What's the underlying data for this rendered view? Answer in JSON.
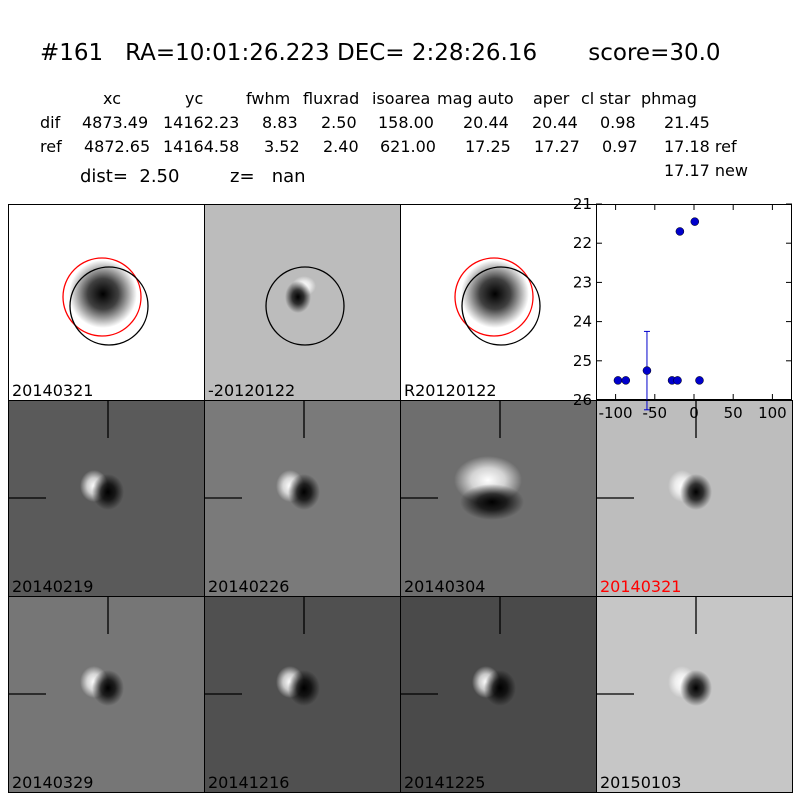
{
  "header": {
    "title": "#161   RA=10:01:26.223 DEC= 2:28:26.16       score=30.0",
    "columns": [
      "xc",
      "yc",
      "fwhm",
      "fluxrad",
      "isoarea",
      "mag auto",
      "aper",
      "cl star",
      "phmag"
    ],
    "rows": [
      {
        "label": "dif",
        "values": [
          "4873.49",
          "14162.23",
          "8.83",
          "2.50",
          "158.00",
          "20.44",
          "20.44",
          "0.98",
          "21.45"
        ]
      },
      {
        "label": "ref",
        "values": [
          "4872.65",
          "14164.58",
          "3.52",
          "2.40",
          "621.00",
          "17.25",
          "17.27",
          "0.97",
          "17.18 ref"
        ]
      }
    ],
    "extra_phmag": "17.17 new",
    "dist": "dist=  2.50",
    "z": "z=   nan"
  },
  "panels": [
    {
      "label": "20140321",
      "bg": "#ffffff",
      "style": "blob",
      "circles": [
        "red",
        "black"
      ],
      "crosshair": false
    },
    {
      "label": "-20120122",
      "bg": "#bcbcbc",
      "style": "dipole-small",
      "circles": [
        "black"
      ],
      "crosshair": false
    },
    {
      "label": "R20120122",
      "bg": "#ffffff",
      "style": "blob",
      "circles": [
        "red",
        "black"
      ],
      "crosshair": false
    },
    {
      "label": "20140219",
      "bg": "#5a5a5a",
      "style": "dipole",
      "circles": [],
      "crosshair": true
    },
    {
      "label": "20140226",
      "bg": "#7a7a7a",
      "style": "dipole",
      "circles": [],
      "crosshair": true
    },
    {
      "label": "20140304",
      "bg": "#6e6e6e",
      "style": "dipole-big",
      "circles": [],
      "crosshair": true
    },
    {
      "label": "20140321",
      "bg": "#bdbdbd",
      "style": "dipole",
      "circles": [],
      "crosshair": true,
      "highlight": true
    },
    {
      "label": "20140329",
      "bg": "#767676",
      "style": "dipole",
      "circles": [],
      "crosshair": true
    },
    {
      "label": "20141216",
      "bg": "#505050",
      "style": "dipole",
      "circles": [],
      "crosshair": true
    },
    {
      "label": "20141225",
      "bg": "#4a4a4a",
      "style": "dipole",
      "circles": [],
      "crosshair": true
    },
    {
      "label": "20150103",
      "bg": "#c6c6c6",
      "style": "dipole",
      "circles": [],
      "crosshair": true
    }
  ],
  "colors": {
    "highlight": "#ff0000",
    "marker": "#0000cc"
  },
  "chart_data": {
    "type": "scatter",
    "xlim": [
      -125,
      125
    ],
    "ylim": [
      26,
      21
    ],
    "xticks": [
      -100,
      -50,
      0,
      50,
      100
    ],
    "yticks": [
      21,
      22,
      23,
      24,
      25,
      26
    ],
    "points": [
      {
        "x": -97,
        "y": 25.5
      },
      {
        "x": -87,
        "y": 25.5
      },
      {
        "x": -60,
        "y": 25.25,
        "err": 1.0
      },
      {
        "x": -28,
        "y": 25.5
      },
      {
        "x": -21,
        "y": 25.5
      },
      {
        "x": -18,
        "y": 21.7
      },
      {
        "x": 1,
        "y": 21.45
      },
      {
        "x": 7,
        "y": 25.5
      }
    ]
  }
}
